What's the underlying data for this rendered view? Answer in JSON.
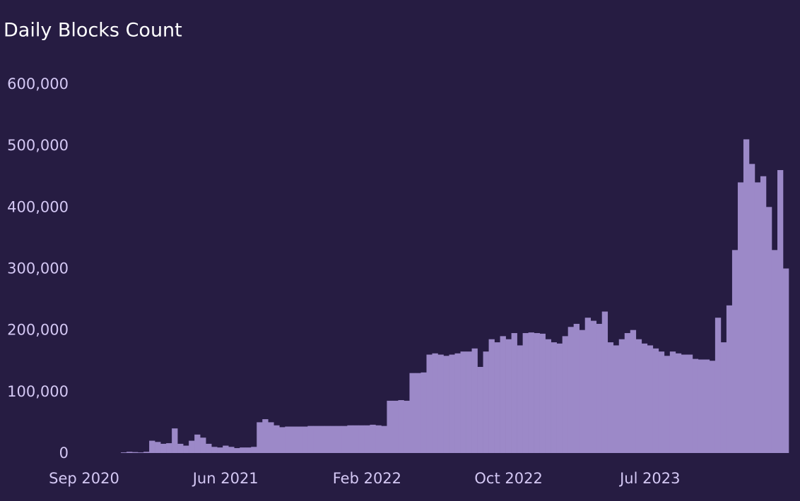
{
  "chart_data": {
    "type": "bar",
    "title": "Daily Blocks Count",
    "categories": [
      "Sep 2020",
      null,
      null,
      null,
      null,
      null,
      null,
      null,
      null,
      null,
      null,
      null,
      null,
      null,
      null,
      null,
      null,
      null,
      null,
      null,
      null,
      null,
      null,
      null,
      null,
      "Jun 2021",
      null,
      null,
      null,
      null,
      null,
      null,
      null,
      null,
      null,
      null,
      null,
      null,
      null,
      null,
      null,
      null,
      null,
      null,
      null,
      null,
      null,
      null,
      null,
      null,
      "Feb 2022",
      null,
      null,
      null,
      null,
      null,
      null,
      null,
      null,
      null,
      null,
      null,
      null,
      null,
      null,
      null,
      null,
      null,
      null,
      null,
      null,
      null,
      null,
      null,
      null,
      "Oct 2022",
      null,
      null,
      null,
      null,
      null,
      null,
      null,
      null,
      null,
      null,
      null,
      null,
      null,
      null,
      null,
      null,
      null,
      null,
      null,
      null,
      null,
      null,
      null,
      null,
      "Jul 2023",
      null,
      null,
      null,
      null,
      null,
      null,
      null,
      null,
      null,
      null,
      null,
      null,
      null,
      null,
      null,
      null,
      null,
      null,
      null,
      null,
      null,
      null,
      null,
      null
    ],
    "values": [
      0,
      0,
      0,
      0,
      0,
      0,
      0,
      1000,
      2000,
      1500,
      1000,
      2000,
      20000,
      18000,
      15000,
      16000,
      40000,
      15000,
      12000,
      20000,
      30000,
      25000,
      15000,
      10000,
      9000,
      12000,
      10000,
      8000,
      9000,
      9000,
      10000,
      50000,
      55000,
      50000,
      45000,
      42000,
      43000,
      43000,
      43000,
      43000,
      44000,
      44000,
      44000,
      44000,
      44000,
      44000,
      44000,
      45000,
      45000,
      45000,
      45000,
      46000,
      45000,
      44000,
      85000,
      85000,
      86000,
      85000,
      130000,
      130000,
      131000,
      160000,
      162000,
      160000,
      158000,
      160000,
      162000,
      165000,
      165000,
      170000,
      140000,
      165000,
      185000,
      180000,
      190000,
      185000,
      195000,
      175000,
      195000,
      196000,
      195000,
      194000,
      185000,
      180000,
      178000,
      190000,
      205000,
      210000,
      200000,
      220000,
      215000,
      210000,
      230000,
      180000,
      175000,
      185000,
      195000,
      200000,
      185000,
      178000,
      175000,
      170000,
      165000,
      158000,
      165000,
      162000,
      160000,
      160000,
      153000,
      152000,
      152000,
      150000,
      220000,
      180000,
      240000,
      330000,
      440000,
      510000,
      470000,
      440000,
      450000,
      400000,
      330000,
      460000,
      300000
    ],
    "color": "#9c89c8",
    "ylim": [
      0,
      600000
    ],
    "yticks": [
      0,
      {
        "value": 100000,
        "label": "100,000"
      },
      {
        "value": 200000,
        "label": "200,000"
      },
      {
        "value": 300000,
        "label": "300,000"
      },
      {
        "value": 400000,
        "label": "400,000"
      },
      {
        "value": 500000,
        "label": "500,000"
      },
      {
        "value": 600000,
        "label": "600,000"
      }
    ],
    "grid": false
  }
}
